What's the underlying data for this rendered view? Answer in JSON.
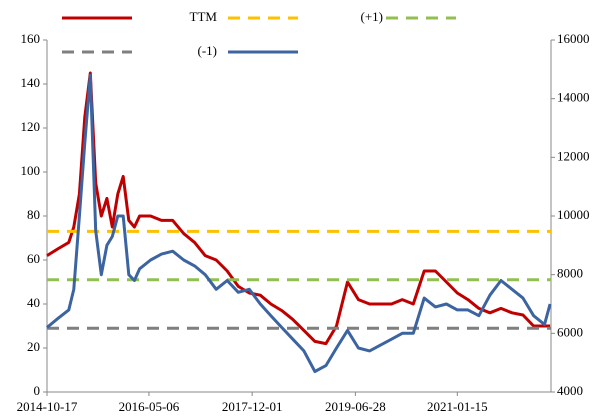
{
  "chart_data": {
    "type": "line",
    "x": [
      "2014-10-17",
      "2014-12-15",
      "2015-02-15",
      "2015-03-15",
      "2015-04-15",
      "2015-05-15",
      "2015-06-15",
      "2015-07-15",
      "2015-08-15",
      "2015-09-15",
      "2015-10-15",
      "2015-11-15",
      "2015-12-15",
      "2016-01-15",
      "2016-02-15",
      "2016-03-15",
      "2016-05-15",
      "2016-07-15",
      "2016-09-15",
      "2016-11-15",
      "2017-01-15",
      "2017-03-15",
      "2017-05-15",
      "2017-07-15",
      "2017-09-15",
      "2017-11-15",
      "2018-01-15",
      "2018-03-15",
      "2018-05-15",
      "2018-07-15",
      "2018-09-15",
      "2018-11-15",
      "2019-01-15",
      "2019-03-15",
      "2019-05-15",
      "2019-07-15",
      "2019-09-15",
      "2019-11-15",
      "2020-01-15",
      "2020-03-15",
      "2020-05-15",
      "2020-07-15",
      "2020-09-15",
      "2020-11-15",
      "2021-01-15",
      "2021-03-15",
      "2021-05-15",
      "2021-07-15",
      "2021-09-15",
      "2021-11-15",
      "2022-01-15",
      "2022-03-15",
      "2022-05-15",
      "2022-06-15"
    ],
    "series": [
      {
        "name": "TTM",
        "color": "#c00000",
        "values": [
          62,
          65,
          68,
          75,
          90,
          125,
          145,
          95,
          80,
          88,
          75,
          90,
          98,
          78,
          75,
          80,
          80,
          78,
          78,
          72,
          68,
          62,
          60,
          55,
          48,
          45,
          44,
          40,
          37,
          33,
          28,
          23,
          22,
          30,
          50,
          42,
          40,
          40,
          40,
          42,
          40,
          55,
          55,
          50,
          45,
          42,
          38,
          36,
          38,
          36,
          35,
          30,
          30,
          30
        ]
      },
      {
        "name": "(+1)",
        "color": "#ffc000",
        "value": 73,
        "style": "dashed"
      },
      {
        "color": "#92c050",
        "value": 51,
        "style": "dashed"
      },
      {
        "name": "(-1)",
        "color": "#7f7f7f",
        "value": 29,
        "style": "dashed"
      },
      {
        "color": "#3c64a0",
        "axis": "y2",
        "values": [
          6200,
          6500,
          6800,
          7500,
          10000,
          12500,
          14800,
          9500,
          8000,
          9000,
          9300,
          10000,
          10000,
          8000,
          7800,
          8200,
          8500,
          8700,
          8800,
          8500,
          8300,
          8000,
          7500,
          7800,
          7400,
          7500,
          7000,
          6600,
          6200,
          5800,
          5400,
          4700,
          4900,
          5500,
          6100,
          5500,
          5400,
          5600,
          5800,
          6000,
          6000,
          7200,
          6900,
          7000,
          6800,
          6800,
          6600,
          7300,
          7800,
          7500,
          7200,
          6600,
          6300,
          7000
        ]
      }
    ],
    "xlim": [
      "2014-10-17",
      "2022-06-20"
    ],
    "xticks": [
      "2014-10-17",
      "2016-05-06",
      "2017-12-01",
      "2019-06-28",
      "2021-01-15"
    ],
    "ylim": [
      0,
      160
    ],
    "yticks": [
      0,
      20,
      40,
      60,
      80,
      100,
      120,
      140,
      160
    ],
    "y2lim": [
      4000,
      16000
    ],
    "y2ticks": [
      4000,
      6000,
      8000,
      10000,
      12000,
      14000,
      16000
    ]
  }
}
